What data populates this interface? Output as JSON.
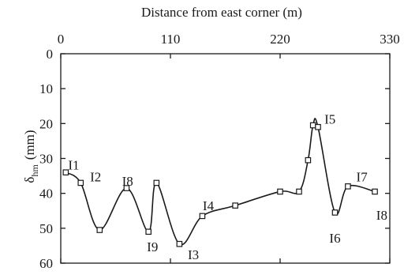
{
  "chart_data": {
    "type": "line",
    "xlabel": "Distance from east corner (m)",
    "ylabel_main": "δ",
    "ylabel_sub": "hm",
    "ylabel_unit": "(mm)",
    "xlim": [
      0,
      330
    ],
    "ylim": [
      0,
      60
    ],
    "y_inverted": true,
    "x_axis_position": "top",
    "x_ticks": [
      0,
      110,
      220,
      330
    ],
    "y_ticks": [
      0,
      10,
      20,
      30,
      40,
      50,
      60
    ],
    "grid": false,
    "series": [
      {
        "x": [
          5,
          20,
          39,
          66,
          88,
          96,
          119,
          142,
          175,
          220,
          239,
          248,
          253,
          258,
          275,
          288,
          315
        ],
        "y": [
          34,
          37,
          50.5,
          38.5,
          51,
          37,
          54.5,
          46.5,
          43.5,
          39.5,
          39.5,
          30.5,
          20.5,
          21,
          45.5,
          38,
          39.5
        ]
      }
    ],
    "annotations": [
      {
        "text": "I1",
        "x": 13,
        "y": 31.8
      },
      {
        "text": "I2",
        "x": 35,
        "y": 35.2
      },
      {
        "text": "I8",
        "x": 67,
        "y": 36.5
      },
      {
        "text": "I9",
        "x": 92,
        "y": 55.3
      },
      {
        "text": "I3",
        "x": 133,
        "y": 57.5
      },
      {
        "text": "I4",
        "x": 148,
        "y": 43.5
      },
      {
        "text": "I5",
        "x": 270,
        "y": 18.7
      },
      {
        "text": "I6",
        "x": 275,
        "y": 52.8
      },
      {
        "text": "I7",
        "x": 302,
        "y": 35.2
      },
      {
        "text": "I8",
        "x": 322,
        "y": 46.2
      }
    ]
  }
}
